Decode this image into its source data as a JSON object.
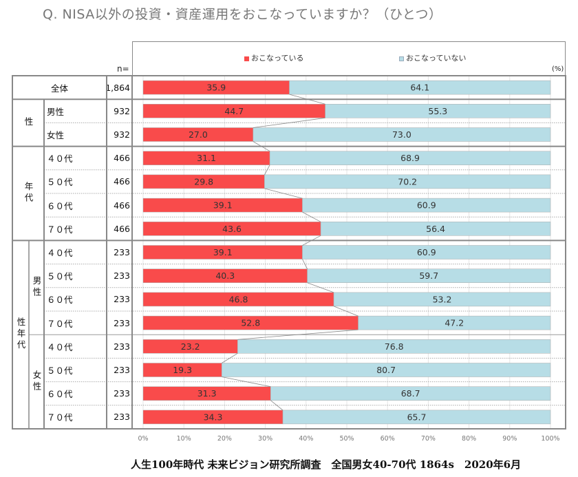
{
  "title": "Q. NISA以外の投資・資産運用をおこなっていますか？（ひとつ）",
  "n_label": "n=",
  "unit_label": "(%)",
  "footer": "人生100年時代 未来ビジョン研究所調査　全国男女40-70代 1864s　2020年6月",
  "chart_data": {
    "type": "bar",
    "orientation": "horizontal",
    "stacked": "100%",
    "title": "Q. NISA以外の投資・資産運用をおこなっていますか？（ひとつ）",
    "xlabel": "",
    "ylabel": "",
    "xlim": [
      0,
      100
    ],
    "x_ticks": [
      "0%",
      "10%",
      "20%",
      "30%",
      "40%",
      "50%",
      "60%",
      "70%",
      "80%",
      "90%",
      "100%"
    ],
    "grid": true,
    "legend_position": "top",
    "legend": [
      {
        "name": "おこなっている",
        "color": "#f94b4b"
      },
      {
        "name": "おこなっていない",
        "color": "#b7dde6"
      }
    ],
    "groups": [
      {
        "label": "",
        "sub": ""
      },
      {
        "label": "性"
      },
      {
        "label": "年代"
      },
      {
        "label": "性年代",
        "subgroups": [
          {
            "label": "男性"
          },
          {
            "label": "女性"
          }
        ]
      }
    ],
    "rows": [
      {
        "group": "全体",
        "subgroup": "",
        "category": "全体",
        "n": "1,864",
        "values": [
          35.9,
          64.1
        ]
      },
      {
        "group": "性",
        "subgroup": "",
        "category": "男性",
        "n": "932",
        "values": [
          44.7,
          55.3
        ]
      },
      {
        "group": "性",
        "subgroup": "",
        "category": "女性",
        "n": "932",
        "values": [
          27.0,
          73.0
        ]
      },
      {
        "group": "年代",
        "subgroup": "",
        "category": "４０代",
        "n": "466",
        "values": [
          31.1,
          68.9
        ]
      },
      {
        "group": "年代",
        "subgroup": "",
        "category": "５０代",
        "n": "466",
        "values": [
          29.8,
          70.2
        ]
      },
      {
        "group": "年代",
        "subgroup": "",
        "category": "６０代",
        "n": "466",
        "values": [
          39.1,
          60.9
        ]
      },
      {
        "group": "年代",
        "subgroup": "",
        "category": "７０代",
        "n": "466",
        "values": [
          43.6,
          56.4
        ]
      },
      {
        "group": "性年代",
        "subgroup": "男性",
        "category": "４０代",
        "n": "233",
        "values": [
          39.1,
          60.9
        ]
      },
      {
        "group": "性年代",
        "subgroup": "男性",
        "category": "５０代",
        "n": "233",
        "values": [
          40.3,
          59.7
        ]
      },
      {
        "group": "性年代",
        "subgroup": "男性",
        "category": "６０代",
        "n": "233",
        "values": [
          46.8,
          53.2
        ]
      },
      {
        "group": "性年代",
        "subgroup": "男性",
        "category": "７０代",
        "n": "233",
        "values": [
          52.8,
          47.2
        ]
      },
      {
        "group": "性年代",
        "subgroup": "女性",
        "category": "４０代",
        "n": "233",
        "values": [
          23.2,
          76.8
        ]
      },
      {
        "group": "性年代",
        "subgroup": "女性",
        "category": "５０代",
        "n": "233",
        "values": [
          19.3,
          80.7
        ]
      },
      {
        "group": "性年代",
        "subgroup": "女性",
        "category": "６０代",
        "n": "233",
        "values": [
          31.3,
          68.7
        ]
      },
      {
        "group": "性年代",
        "subgroup": "女性",
        "category": "７０代",
        "n": "233",
        "values": [
          34.3,
          65.7
        ]
      }
    ]
  },
  "colors": {
    "doing": "#f94b4b",
    "not_doing": "#b7dde6",
    "border": "#888888"
  }
}
